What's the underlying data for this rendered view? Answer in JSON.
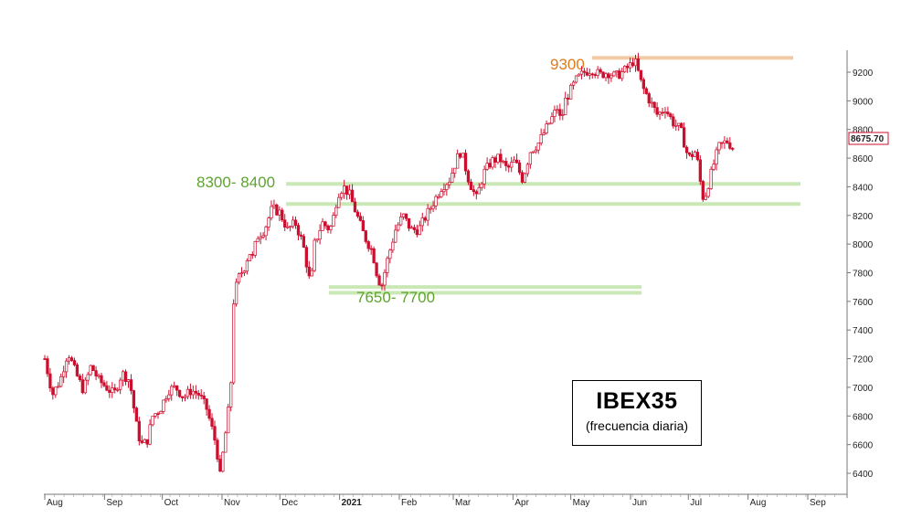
{
  "chart_data": {
    "type": "candlestick",
    "title": "IBEX35",
    "subtitle": "(frecuencia diaria)",
    "y_ticks": [
      6400,
      6600,
      6800,
      7000,
      7200,
      7400,
      7600,
      7800,
      8000,
      8200,
      8400,
      8600,
      8800,
      9000,
      9200
    ],
    "ylim": [
      6300,
      9330
    ],
    "x_ticks": [
      {
        "label": "Aug",
        "day": 0
      },
      {
        "label": "Sep",
        "day": 31
      },
      {
        "label": "Oct",
        "day": 61
      },
      {
        "label": "Nov",
        "day": 92
      },
      {
        "label": "Dec",
        "day": 122
      },
      {
        "label": "2021",
        "day": 153,
        "bold": true
      },
      {
        "label": "Feb",
        "day": 184
      },
      {
        "label": "Mar",
        "day": 212
      },
      {
        "label": "Apr",
        "day": 243
      },
      {
        "label": "May",
        "day": 273
      },
      {
        "label": "Jun",
        "day": 304
      },
      {
        "label": "Jul",
        "day": 334
      },
      {
        "label": "Aug",
        "day": 365
      },
      {
        "label": "Sep",
        "day": 396
      }
    ],
    "last_price": "8675.70",
    "price_path": [
      [
        0,
        7200
      ],
      [
        4,
        6950
      ],
      [
        8,
        7050
      ],
      [
        12,
        7250
      ],
      [
        16,
        7100
      ],
      [
        20,
        6980
      ],
      [
        24,
        7150
      ],
      [
        28,
        7050
      ],
      [
        32,
        7000
      ],
      [
        36,
        6950
      ],
      [
        40,
        7100
      ],
      [
        44,
        7050
      ],
      [
        48,
        6700
      ],
      [
        50,
        6600
      ],
      [
        53,
        6620
      ],
      [
        56,
        6800
      ],
      [
        60,
        6850
      ],
      [
        64,
        6980
      ],
      [
        68,
        7000
      ],
      [
        72,
        6930
      ],
      [
        76,
        6980
      ],
      [
        80,
        6950
      ],
      [
        84,
        6850
      ],
      [
        88,
        6650
      ],
      [
        90,
        6500
      ],
      [
        91,
        6380
      ],
      [
        93,
        6600
      ],
      [
        95,
        6800
      ],
      [
        96,
        6950
      ],
      [
        97,
        7100
      ],
      [
        98,
        7600
      ],
      [
        100,
        7750
      ],
      [
        104,
        7850
      ],
      [
        106,
        7950
      ],
      [
        108,
        7900
      ],
      [
        110,
        8050
      ],
      [
        114,
        8100
      ],
      [
        118,
        8250
      ],
      [
        122,
        8220
      ],
      [
        126,
        8100
      ],
      [
        130,
        8150
      ],
      [
        134,
        8000
      ],
      [
        138,
        7700
      ],
      [
        140,
        8000
      ],
      [
        144,
        8150
      ],
      [
        148,
        8100
      ],
      [
        150,
        8200
      ],
      [
        152,
        8350
      ],
      [
        155,
        8400
      ],
      [
        158,
        8350
      ],
      [
        162,
        8200
      ],
      [
        166,
        8050
      ],
      [
        170,
        7950
      ],
      [
        173,
        7750
      ],
      [
        175,
        7720
      ],
      [
        178,
        7900
      ],
      [
        182,
        8100
      ],
      [
        186,
        8200
      ],
      [
        190,
        8100
      ],
      [
        194,
        8100
      ],
      [
        198,
        8200
      ],
      [
        202,
        8300
      ],
      [
        206,
        8400
      ],
      [
        210,
        8450
      ],
      [
        214,
        8600
      ],
      [
        216,
        8650
      ],
      [
        218,
        8550
      ],
      [
        220,
        8450
      ],
      [
        222,
        8380
      ],
      [
        224,
        8320
      ],
      [
        228,
        8500
      ],
      [
        232,
        8580
      ],
      [
        236,
        8600
      ],
      [
        240,
        8520
      ],
      [
        244,
        8580
      ],
      [
        248,
        8450
      ],
      [
        252,
        8650
      ],
      [
        256,
        8700
      ],
      [
        260,
        8800
      ],
      [
        264,
        8900
      ],
      [
        266,
        8950
      ],
      [
        268,
        8850
      ],
      [
        270,
        9000
      ],
      [
        272,
        9050
      ],
      [
        276,
        9150
      ],
      [
        280,
        9200
      ],
      [
        284,
        9220
      ],
      [
        288,
        9180
      ],
      [
        292,
        9200
      ],
      [
        296,
        9170
      ],
      [
        300,
        9200
      ],
      [
        304,
        9250
      ],
      [
        306,
        9290
      ],
      [
        308,
        9200
      ],
      [
        310,
        9100
      ],
      [
        314,
        9000
      ],
      [
        318,
        8900
      ],
      [
        322,
        8950
      ],
      [
        326,
        8850
      ],
      [
        330,
        8800
      ],
      [
        334,
        8600
      ],
      [
        338,
        8650
      ],
      [
        340,
        8450
      ],
      [
        342,
        8300
      ],
      [
        344,
        8400
      ],
      [
        346,
        8500
      ],
      [
        348,
        8600
      ],
      [
        350,
        8680
      ],
      [
        354,
        8720
      ],
      [
        357,
        8675
      ]
    ],
    "zones": [
      {
        "label": "9300",
        "values": [
          9300
        ],
        "color": "#e07b1a",
        "band": "#f3c9a6"
      },
      {
        "label": "8300- 8400",
        "values": [
          8420,
          8280
        ],
        "color": "#5ea42f",
        "band": "#c9e8b5"
      },
      {
        "label": "7650- 7700",
        "values": [
          7700,
          7660
        ],
        "color": "#5ea42f",
        "band": "#c9e8b5"
      }
    ],
    "candle_color": "#cc0f2e",
    "grid": false
  }
}
